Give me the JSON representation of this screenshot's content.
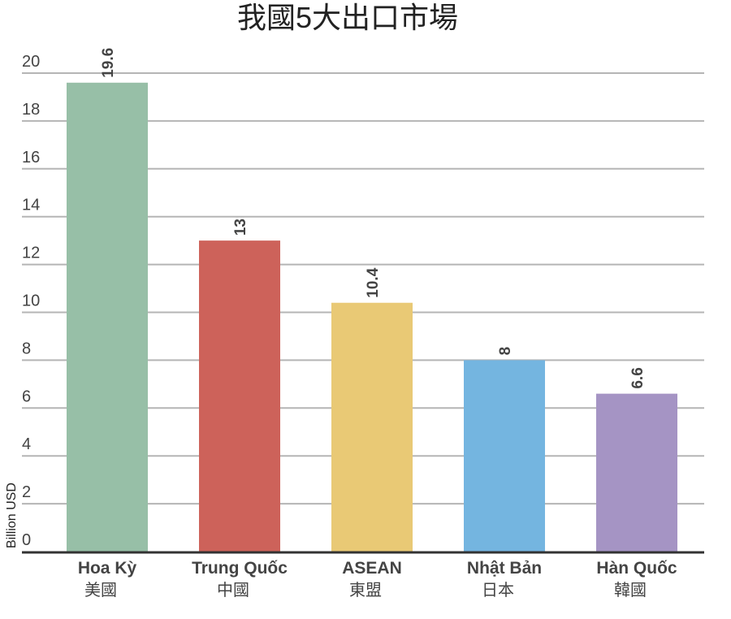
{
  "chart_data": {
    "type": "bar",
    "title": "我國5大出口市場",
    "ylabel": "Billion USD",
    "xlabel": "",
    "ylim": [
      0,
      20
    ],
    "yticks": [
      0,
      2,
      4,
      6,
      8,
      10,
      12,
      14,
      16,
      18,
      20
    ],
    "grid": true,
    "categories": [
      "Hoa Kỳ",
      "Trung Quốc",
      "ASEAN",
      "Nhật Bản",
      "Hàn Quốc"
    ],
    "category_subtitles": [
      "美國",
      "中國",
      "東盟",
      "日本",
      "韓國"
    ],
    "values": [
      19.6,
      13,
      10.4,
      8,
      6.6
    ],
    "value_labels": [
      "19.6",
      "13",
      "10.4",
      "8",
      "6.6"
    ],
    "colors": [
      "#97bfa7",
      "#cd625a",
      "#e9c975",
      "#74b5e0",
      "#a594c4"
    ]
  }
}
